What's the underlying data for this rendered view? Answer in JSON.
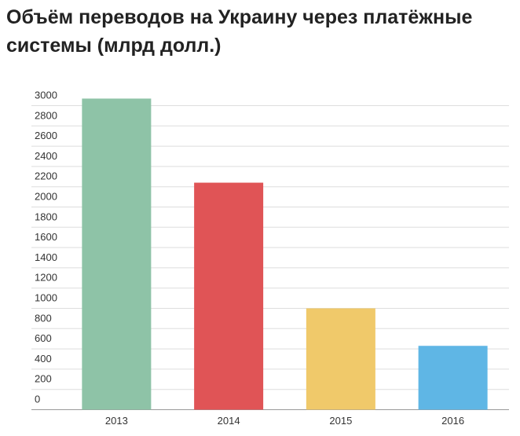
{
  "chart_data": {
    "type": "bar",
    "title": "Объём переводов на Украину через платёжные системы (млрд долл.)",
    "categories": [
      "2013",
      "2014",
      "2015",
      "2016"
    ],
    "values": [
      3070,
      2240,
      1000,
      630
    ],
    "colors": [
      "#8ec3a7",
      "#e05456",
      "#f0c96a",
      "#5fb6e5"
    ],
    "ylim": [
      0,
      3000
    ],
    "yticks": [
      0,
      200,
      400,
      600,
      800,
      1000,
      1200,
      1400,
      1600,
      1800,
      2000,
      2200,
      2400,
      2600,
      2800,
      3000
    ],
    "grid": true
  }
}
